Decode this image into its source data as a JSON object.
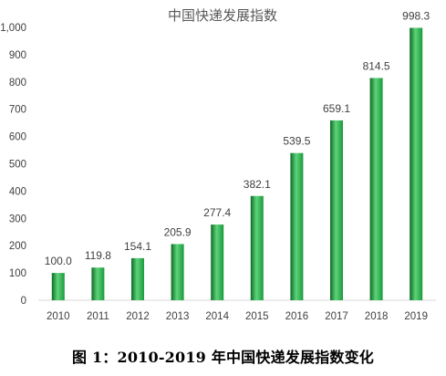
{
  "chart_data": {
    "type": "bar",
    "title": "中国快递发展指数",
    "categories": [
      "2010",
      "2011",
      "2012",
      "2013",
      "2014",
      "2015",
      "2016",
      "2017",
      "2018",
      "2019"
    ],
    "values": [
      100.0,
      119.8,
      154.1,
      205.9,
      277.4,
      382.1,
      539.5,
      659.1,
      814.5,
      998.3
    ],
    "value_labels": [
      "100.0",
      "119.8",
      "154.1",
      "205.9",
      "277.4",
      "382.1",
      "539.5",
      "659.1",
      "814.5",
      "998.3"
    ],
    "xlabel": "",
    "ylabel": "",
    "ylim": [
      0,
      1000
    ],
    "yticks": [
      0,
      100,
      200,
      300,
      400,
      500,
      600,
      700,
      800,
      900,
      1000
    ],
    "ytick_labels": [
      "0",
      "100",
      "200",
      "300",
      "400",
      "500",
      "600",
      "700",
      "800",
      "900",
      "1,000"
    ],
    "grid": false,
    "legend": "none",
    "bar_color": "#1a9a3c",
    "bar_color_light": "#5fd37a",
    "bar_color_dark": "#0b6b25"
  },
  "caption": "图 1：2010-2019 年中国快递发展指数变化"
}
